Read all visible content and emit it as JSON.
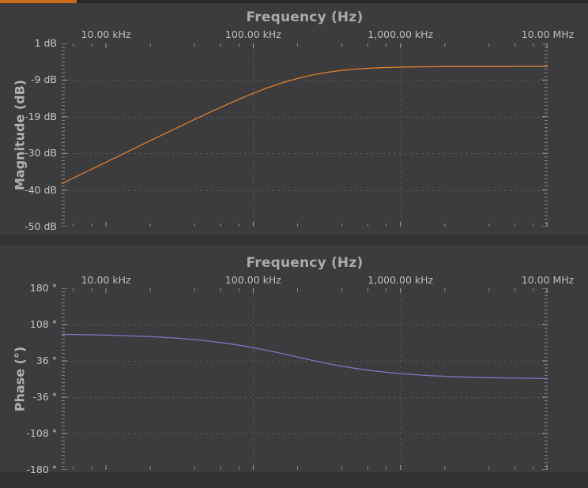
{
  "colors": {
    "page_bg": "#3c3c3e",
    "band_top": "#28282a",
    "band_mid": "#333335",
    "band_bottom": "#323234",
    "progress": "#cd6c1c",
    "grid": "#56565a",
    "tick_minor": "#8b8b8b",
    "tick_major": "#a5a5a5",
    "magnitude_trace": "#e0802c",
    "phase_trace": "#7f74c4"
  },
  "progress_bar": {
    "fraction": 0.13
  },
  "chart_data": [
    {
      "type": "line",
      "x_scale": "log",
      "title": "Frequency (Hz)",
      "xlabel": "Frequency (Hz)",
      "ylabel": "Magnitude (dB)",
      "x_range_hz": [
        5000,
        10000000
      ],
      "ylim": [
        -50,
        1
      ],
      "grid": true,
      "legend_position": "none",
      "x_ticks": {
        "values": [
          10000,
          100000,
          1000000,
          10000000
        ],
        "labels": [
          "10.00 kHz",
          "100.00 kHz",
          "1,000.00 kHz",
          "10.00 MHz"
        ]
      },
      "y_ticks": {
        "values": [
          1,
          -9.2,
          -19.4,
          -29.6,
          -39.8,
          -50
        ],
        "labels": [
          "1 dB",
          "-9 dB",
          "-19 dB",
          "-30 dB",
          "-40 dB",
          "-50 dB"
        ]
      },
      "grid_x": [
        100000,
        1000000
      ],
      "series": [
        {
          "name": "Magnitude",
          "color": "#e0802c",
          "x": [
            5000,
            6300,
            7900,
            10000,
            12600,
            15800,
            20000,
            25100,
            31600,
            39800,
            50100,
            63100,
            79400,
            100000,
            125900,
            158500,
            199500,
            251200,
            316200,
            398100,
            501200,
            631000,
            794300,
            1000000,
            1258900,
            1584900,
            1995300,
            2511900,
            3162300,
            3981100,
            5011900,
            6309600,
            7943300,
            10000000
          ],
          "y": [
            -38.07,
            -36.06,
            -34.11,
            -32.06,
            -30.06,
            -28.1,
            -26.07,
            -24.12,
            -22.15,
            -20.2,
            -18.28,
            -16.41,
            -14.6,
            -12.89,
            -11.3,
            -9.93,
            -8.75,
            -7.79,
            -7.05,
            -6.51,
            -6.13,
            -5.88,
            -5.71,
            -5.6,
            -5.53,
            -5.48,
            -5.45,
            -5.43,
            -5.42,
            -5.41,
            -5.41,
            -5.4,
            -5.4,
            -5.4
          ]
        }
      ]
    },
    {
      "type": "line",
      "x_scale": "log",
      "title": "Frequency (Hz)",
      "xlabel": "Frequency (Hz)",
      "ylabel": "Phase (°)",
      "x_range_hz": [
        5000,
        10000000
      ],
      "ylim": [
        -180,
        180
      ],
      "grid": true,
      "legend_position": "none",
      "x_ticks": {
        "values": [
          10000,
          100000,
          1000000,
          10000000
        ],
        "labels": [
          "10.00 kHz",
          "100.00 kHz",
          "1,000.00 kHz",
          "10.00 MHz"
        ]
      },
      "y_ticks": {
        "values": [
          180,
          108,
          36,
          -36,
          -108,
          -180
        ],
        "labels": [
          "180 °",
          "108 °",
          "36 °",
          "-36 °",
          "-108 °",
          "-180 °"
        ]
      },
      "grid_x": [
        100000,
        1000000
      ],
      "series": [
        {
          "name": "Phase",
          "color": "#7f74c4",
          "x": [
            5000,
            6300,
            7900,
            10000,
            12600,
            15800,
            20000,
            25100,
            31600,
            39800,
            50100,
            63100,
            79400,
            100000,
            125900,
            158500,
            199500,
            251200,
            316200,
            398100,
            501200,
            631000,
            794300,
            1000000,
            1258900,
            1584900,
            1995300,
            2511900,
            3162300,
            3981100,
            5011900,
            6309600,
            7943300,
            10000000
          ],
          "y": [
            88.5,
            88.1,
            87.6,
            87.0,
            86.2,
            85.2,
            84.0,
            82.5,
            80.6,
            78.2,
            75.2,
            71.6,
            67.3,
            62.2,
            56.5,
            50.1,
            43.6,
            37.1,
            31.0,
            25.5,
            20.8,
            16.7,
            13.4,
            10.8,
            8.6,
            6.8,
            5.4,
            4.3,
            3.4,
            2.7,
            2.2,
            1.7,
            1.4,
            1.1
          ]
        }
      ]
    }
  ]
}
